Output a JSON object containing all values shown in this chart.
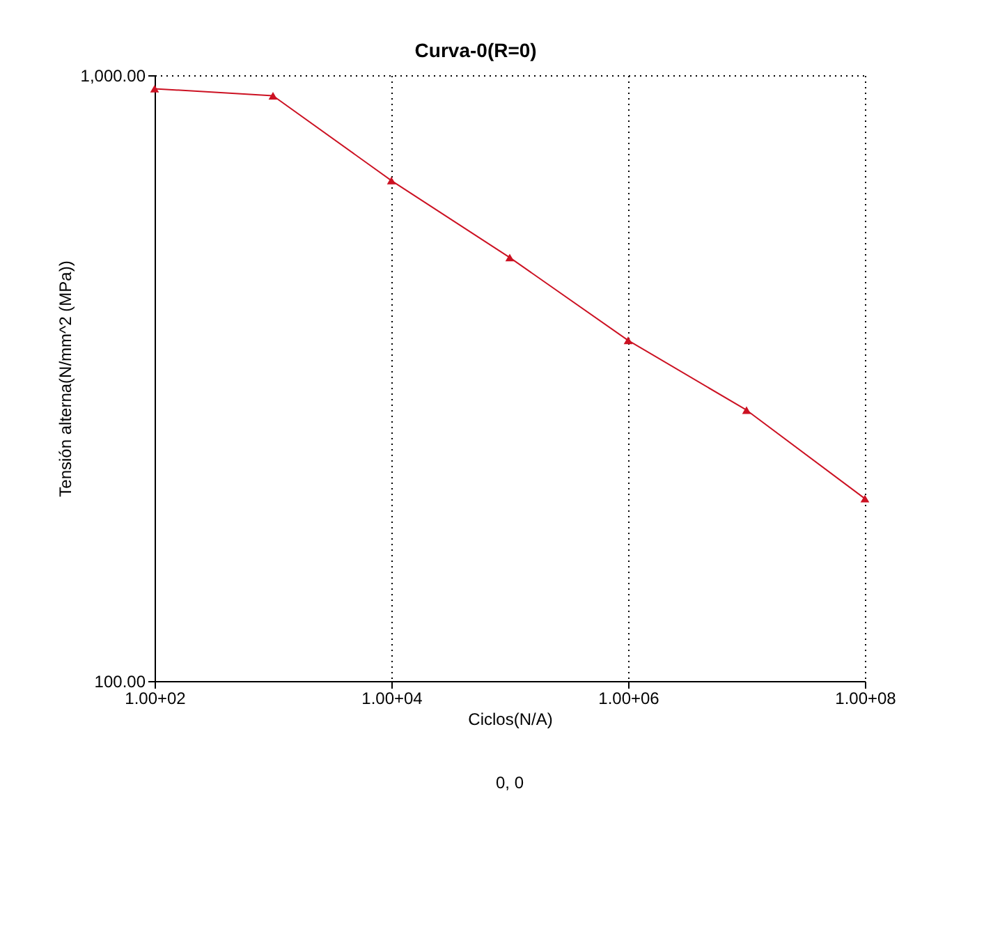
{
  "chart_data": {
    "type": "line",
    "title": "Curva-0(R=0)",
    "xlabel": "Ciclos(N/A)",
    "ylabel": "Tensión alterna(N/mm^2 (MPa))",
    "categories": [
      "1.00+02",
      null,
      "1.00+04",
      null,
      "1.00+06",
      null,
      "1.00+08"
    ],
    "series": [
      {
        "color": "#cc1122",
        "values": [
          950,
          925,
          670,
          500,
          365,
          280,
          200
        ]
      }
    ],
    "log": "y",
    "ylim": [
      100,
      1000
    ],
    "yticks": [
      {
        "value": 100,
        "label": "100.00"
      },
      {
        "value": 1000,
        "label": "1,000.00"
      }
    ],
    "grid": true,
    "marker": "triangle",
    "line_style": "solid",
    "annotations": [
      "0, 0"
    ]
  }
}
